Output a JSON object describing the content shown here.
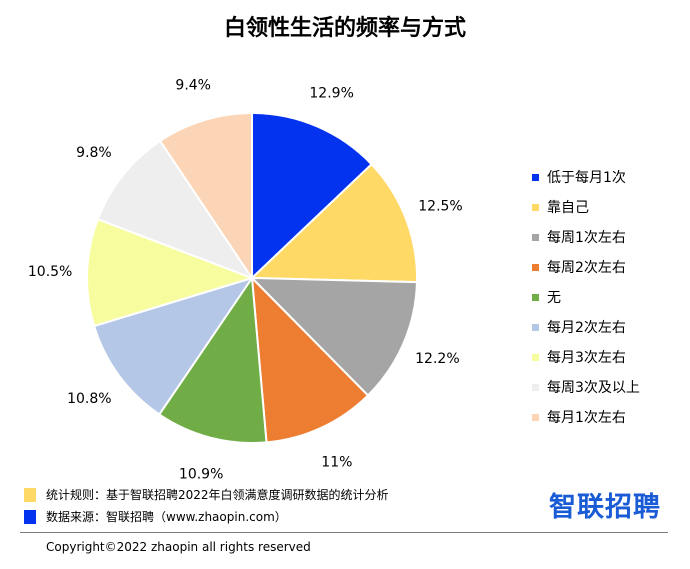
{
  "chart_data": {
    "type": "pie",
    "title": "白领性生活的频率与方式",
    "slices": [
      {
        "label": "低于每月1次",
        "value": 12.9,
        "display": "12.9%",
        "color": "#0433f0"
      },
      {
        "label": "靠自己",
        "value": 12.5,
        "display": "12.5%",
        "color": "#ffd966"
      },
      {
        "label": "每周1次左右",
        "value": 12.2,
        "display": "12.2%",
        "color": "#a5a5a5"
      },
      {
        "label": "每周2次左右",
        "value": 11.0,
        "display": "11%",
        "color": "#ed7d31"
      },
      {
        "label": "无",
        "value": 10.9,
        "display": "10.9%",
        "color": "#70ad47"
      },
      {
        "label": "每月2次左右",
        "value": 10.8,
        "display": "10.8%",
        "color": "#b4c7e7"
      },
      {
        "label": "每月3次左右",
        "value": 10.5,
        "display": "10.5%",
        "color": "#f7fc9f"
      },
      {
        "label": "每周3次及以上",
        "value": 9.8,
        "display": "9.8%",
        "color": "#eeeeee"
      },
      {
        "label": "每月1次左右",
        "value": 9.4,
        "display": "9.4%",
        "color": "#fbd5b5"
      }
    ],
    "legend_position": "right"
  },
  "footer": {
    "rule_text": "统计规则：基于智联招聘2022年白领满意度调研数据的统计分析",
    "rule_color": "#ffd966",
    "source_text": "数据来源：智联招聘（www.zhaopin.com）",
    "source_color": "#0433f0",
    "logo_text": "智联招聘",
    "copyright": "Copyright©2022 zhaopin all rights reserved"
  }
}
